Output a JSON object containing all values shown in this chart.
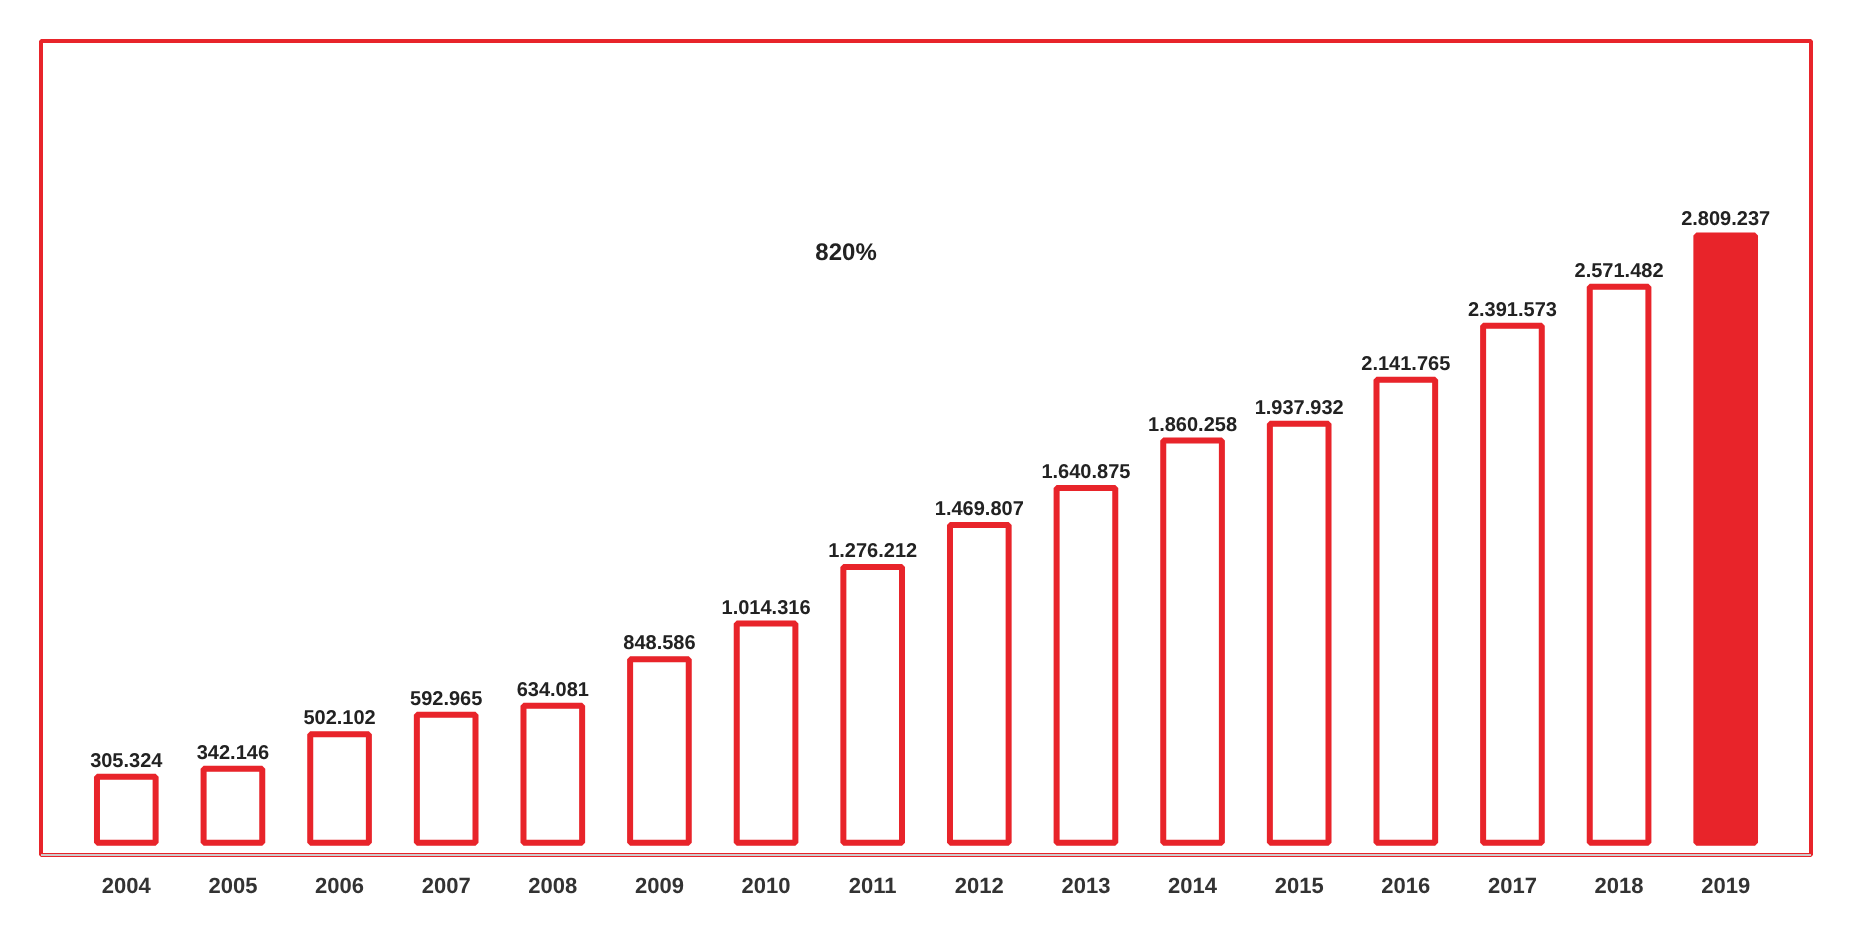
{
  "chart_data": {
    "type": "bar",
    "categories": [
      "2004",
      "2005",
      "2006",
      "2007",
      "2008",
      "2009",
      "2010",
      "2011",
      "2012",
      "2013",
      "2014",
      "2015",
      "2016",
      "2017",
      "2018",
      "2019"
    ],
    "values": [
      305324,
      342146,
      502102,
      592965,
      634081,
      848586,
      1014316,
      1276212,
      1469807,
      1640875,
      1860258,
      1937932,
      2141765,
      2391573,
      2571482,
      2809237
    ],
    "value_labels": [
      "305.324",
      "342.146",
      "502.102",
      "592.965",
      "634.081",
      "848.586",
      "1.014.316",
      "1.276.212",
      "1.469.807",
      "1.640.875",
      "1.860.258",
      "1.937.932",
      "2.141.765",
      "2.391.573",
      "2.571.482",
      "2.809.237"
    ],
    "color": "#e8242a",
    "colors": [
      "#ffffff",
      "#ffffff",
      "#ffffff",
      "#ffffff",
      "#ffffff",
      "#ffffff",
      "#ffffff",
      "#ffffff",
      "#ffffff",
      "#ffffff",
      "#ffffff",
      "#ffffff",
      "#ffffff",
      "#ffffff",
      "#ffffff",
      "#e8242a"
    ],
    "annotations": [
      "820%"
    ],
    "grid": false
  }
}
